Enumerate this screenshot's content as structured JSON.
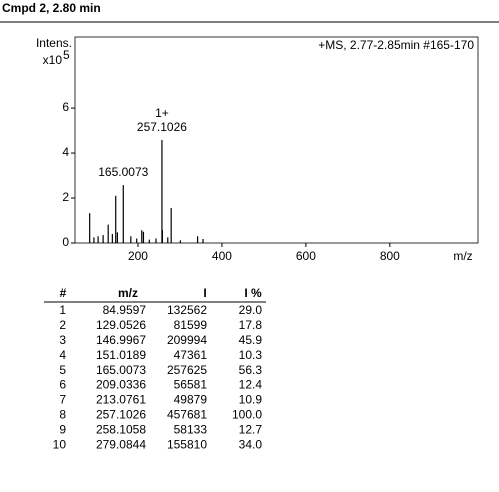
{
  "chart_data": {
    "type": "bar",
    "title": "Cmpd 2, 2.80 min",
    "annotation": "+MS, 2.77-2.85min #165-170",
    "y_label": "Intens.",
    "y_multiplier": {
      "base": "x10",
      "exponent": "5"
    },
    "x_label": "m/z",
    "x": [
      84.9597,
      129.0526,
      146.9967,
      151.0189,
      165.0073,
      209.0336,
      213.0761,
      257.1026,
      258.1058,
      279.0844,
      95.1,
      105.0,
      117.0,
      139.0,
      183.0,
      197.0,
      227.0,
      243.0,
      271.0,
      301.0,
      342.0,
      355.0
    ],
    "values": [
      1.32562,
      0.81599,
      2.09994,
      0.47361,
      2.57625,
      0.56581,
      0.49879,
      4.57681,
      0.58133,
      1.5581,
      0.25,
      0.3,
      0.35,
      0.4,
      0.3,
      0.2,
      0.15,
      0.2,
      0.25,
      0.12,
      0.3,
      0.18
    ],
    "peak_labels": [
      null,
      null,
      null,
      null,
      "165.0073",
      null,
      null,
      "257.1026",
      null,
      null,
      null,
      null,
      null,
      null,
      null,
      null,
      null,
      null,
      null,
      null,
      null,
      null
    ],
    "charge_labels": [
      null,
      null,
      null,
      null,
      null,
      null,
      null,
      "1+",
      null,
      null,
      null,
      null,
      null,
      null,
      null,
      null,
      null,
      null,
      null,
      null,
      null,
      null
    ],
    "color": "#000000",
    "xlim": [
      50,
      1010
    ],
    "xticks": [
      200,
      400,
      600,
      800
    ],
    "ylim": [
      0,
      9.16
    ],
    "yticks": [
      0,
      2,
      4,
      6
    ]
  },
  "table": {
    "header": [
      "#",
      "m/z",
      "I",
      "I %"
    ],
    "rows": [
      [
        "1",
        "84.9597",
        "132562",
        "29.0"
      ],
      [
        "2",
        "129.0526",
        "81599",
        "17.8"
      ],
      [
        "3",
        "146.9967",
        "209994",
        "45.9"
      ],
      [
        "4",
        "151.0189",
        "47361",
        "10.3"
      ],
      [
        "5",
        "165.0073",
        "257625",
        "56.3"
      ],
      [
        "6",
        "209.0336",
        "56581",
        "12.4"
      ],
      [
        "7",
        "213.0761",
        "49879",
        "10.9"
      ],
      [
        "8",
        "257.1026",
        "457681",
        "100.0"
      ],
      [
        "9",
        "258.1058",
        "58133",
        "12.7"
      ],
      [
        "10",
        "279.0844",
        "155810",
        "34.0"
      ]
    ]
  }
}
